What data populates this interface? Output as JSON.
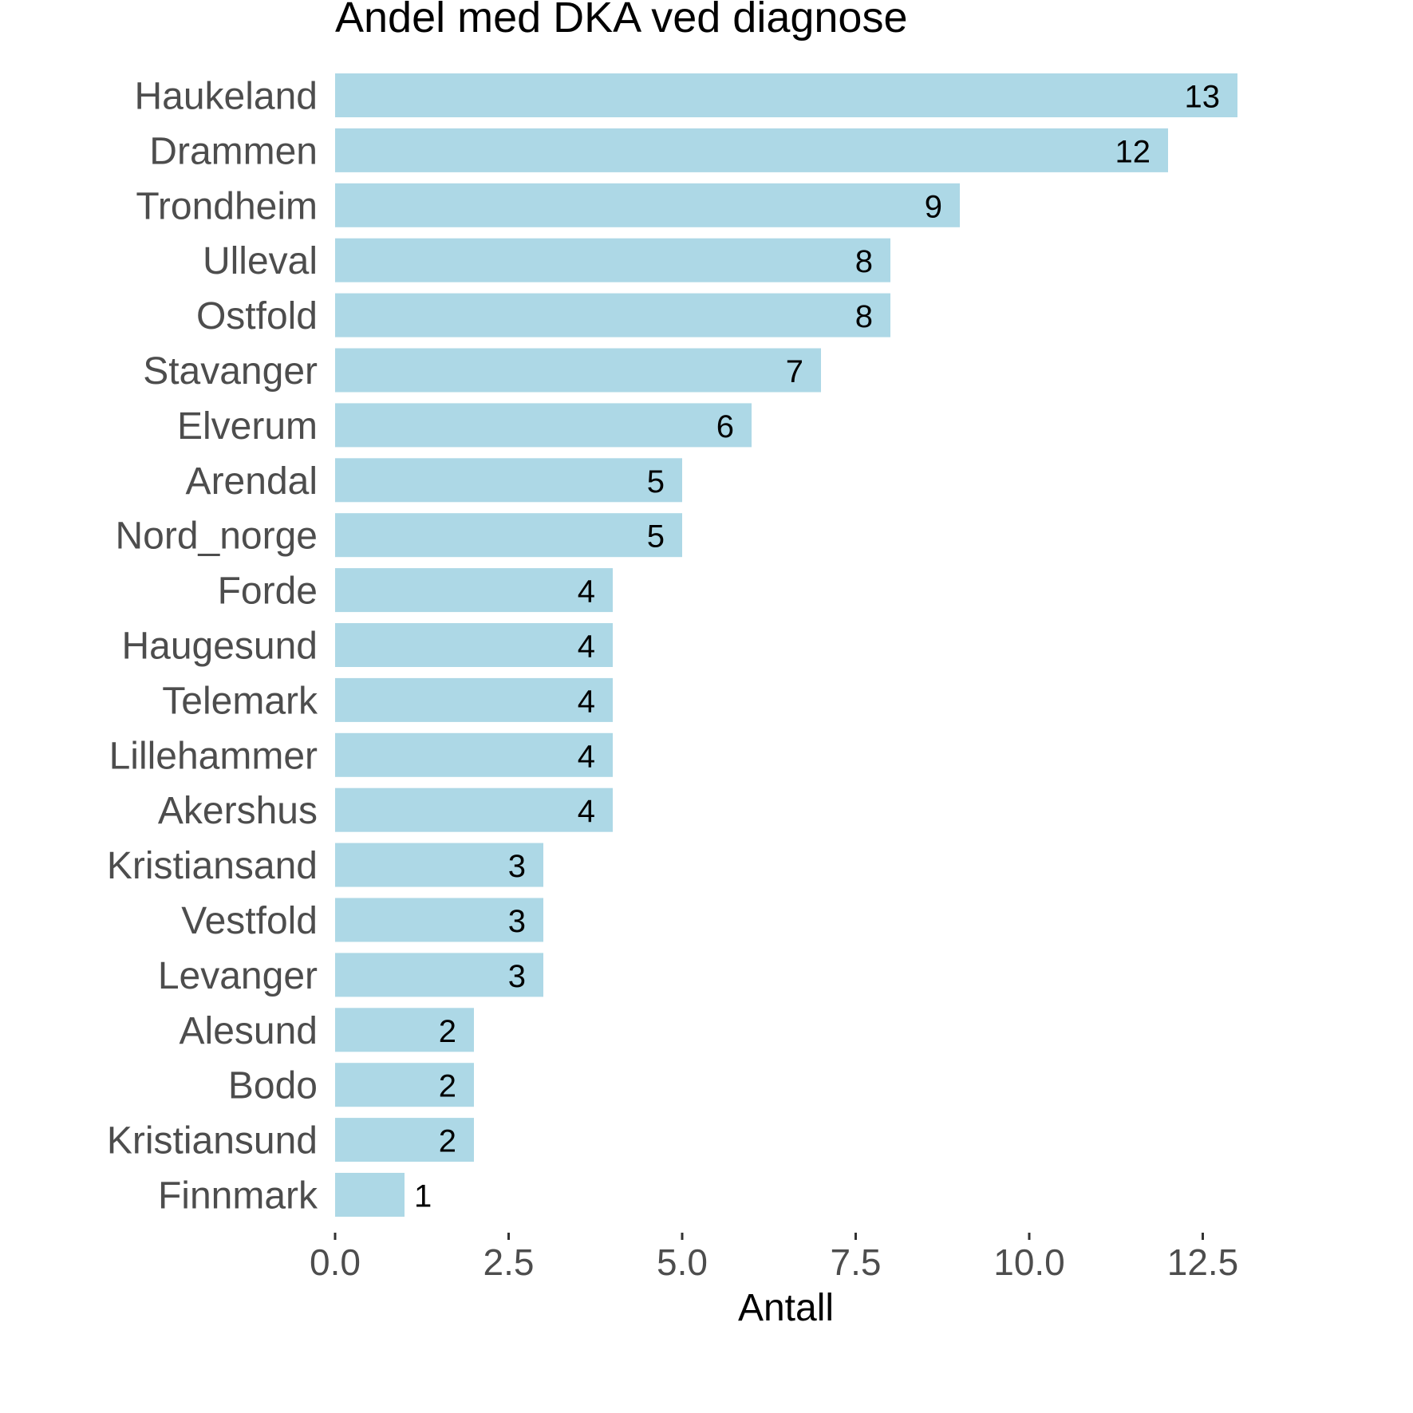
{
  "chart_data": {
    "type": "bar",
    "orientation": "horizontal",
    "title": "Andel med DKA ved diagnose",
    "xlabel": "Antall",
    "ylabel": "",
    "categories": [
      "Haukeland",
      "Drammen",
      "Trondheim",
      "Ulleval",
      "Ostfold",
      "Stavanger",
      "Elverum",
      "Arendal",
      "Nord_norge",
      "Forde",
      "Haugesund",
      "Telemark",
      "Lillehammer",
      "Akershus",
      "Kristiansand",
      "Vestfold",
      "Levanger",
      "Alesund",
      "Bodo",
      "Kristiansund",
      "Finnmark"
    ],
    "values": [
      13,
      12,
      9,
      8,
      8,
      7,
      6,
      5,
      5,
      4,
      4,
      4,
      4,
      4,
      3,
      3,
      3,
      2,
      2,
      2,
      1
    ],
    "data_labels": [
      "13",
      "12",
      "9",
      "8",
      "8",
      "7",
      "6",
      "5",
      "5",
      "4",
      "4",
      "4",
      "4",
      "4",
      "3",
      "3",
      "3",
      "2",
      "2",
      "2",
      "1"
    ],
    "xticks": [
      0,
      2.5,
      5,
      7.5,
      10,
      12.5
    ],
    "xtick_labels": [
      "0.0",
      "2.5",
      "5.0",
      "7.5",
      "10.0",
      "12.5"
    ],
    "xlim": [
      0,
      13
    ],
    "bar_color": "#add8e6",
    "grid": false,
    "legend": "none"
  }
}
